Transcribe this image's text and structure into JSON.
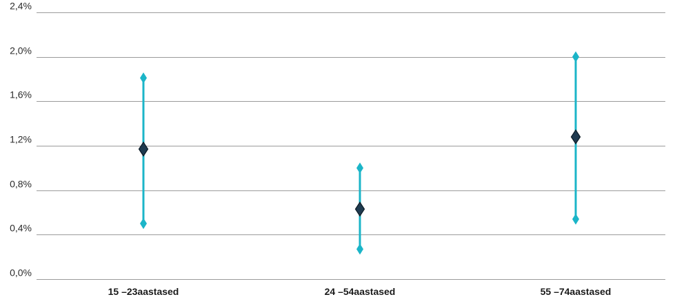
{
  "chart_data": {
    "type": "range",
    "categories": [
      "15 –23aastased",
      "24 –54aastased",
      "55 –74aastased"
    ],
    "series": [
      {
        "values": [
          0.5,
          0.27,
          0.54
        ]
      },
      {
        "values": [
          1.17,
          0.63,
          1.28
        ]
      },
      {
        "values": [
          1.81,
          1.0,
          2.0
        ]
      }
    ],
    "ylim": [
      0,
      2.4
    ],
    "yticks": [
      0,
      0.4,
      0.8,
      1.2,
      1.6,
      2.0,
      2.4
    ],
    "ytick_labels": [
      "0,0%",
      "0,4%",
      "0,8%",
      "1,2%",
      "1,6%",
      "2,0%",
      "2,4%"
    ],
    "grid": true,
    "colors": {
      "range": "#1bb5c8",
      "point": "#1f3a4f",
      "grid": "#9a9a9a"
    }
  }
}
